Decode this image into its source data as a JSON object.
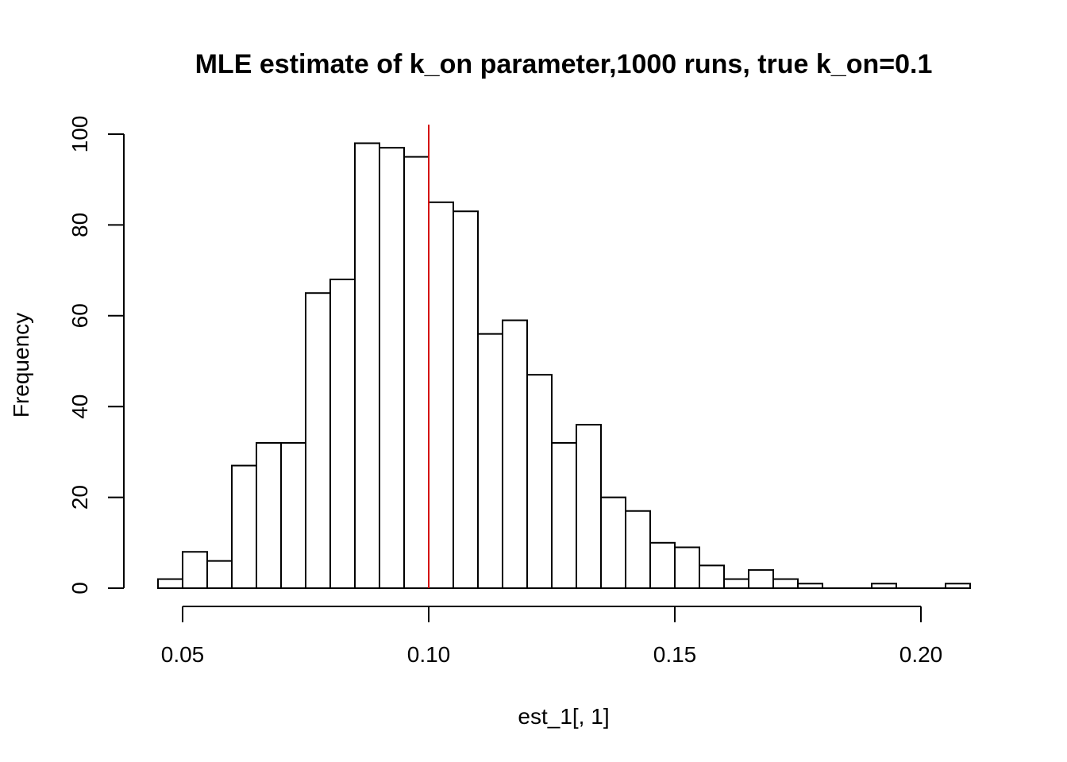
{
  "chart_data": {
    "type": "bar",
    "title": "MLE estimate of k_on parameter,1000 runs, true k_on=0.1",
    "xlabel": "est_1[, 1]",
    "ylabel": "Frequency",
    "bin_width": 0.005,
    "bins": [
      {
        "x0": 0.045,
        "x1": 0.05,
        "count": 2
      },
      {
        "x0": 0.05,
        "x1": 0.055,
        "count": 8
      },
      {
        "x0": 0.055,
        "x1": 0.06,
        "count": 6
      },
      {
        "x0": 0.06,
        "x1": 0.065,
        "count": 27
      },
      {
        "x0": 0.065,
        "x1": 0.07,
        "count": 32
      },
      {
        "x0": 0.07,
        "x1": 0.075,
        "count": 32
      },
      {
        "x0": 0.075,
        "x1": 0.08,
        "count": 65
      },
      {
        "x0": 0.08,
        "x1": 0.085,
        "count": 68
      },
      {
        "x0": 0.085,
        "x1": 0.09,
        "count": 98
      },
      {
        "x0": 0.09,
        "x1": 0.095,
        "count": 97
      },
      {
        "x0": 0.095,
        "x1": 0.1,
        "count": 95
      },
      {
        "x0": 0.1,
        "x1": 0.105,
        "count": 85
      },
      {
        "x0": 0.105,
        "x1": 0.11,
        "count": 83
      },
      {
        "x0": 0.11,
        "x1": 0.115,
        "count": 56
      },
      {
        "x0": 0.115,
        "x1": 0.12,
        "count": 59
      },
      {
        "x0": 0.12,
        "x1": 0.125,
        "count": 47
      },
      {
        "x0": 0.125,
        "x1": 0.13,
        "count": 32
      },
      {
        "x0": 0.13,
        "x1": 0.135,
        "count": 36
      },
      {
        "x0": 0.135,
        "x1": 0.14,
        "count": 20
      },
      {
        "x0": 0.14,
        "x1": 0.145,
        "count": 17
      },
      {
        "x0": 0.145,
        "x1": 0.15,
        "count": 10
      },
      {
        "x0": 0.15,
        "x1": 0.155,
        "count": 9
      },
      {
        "x0": 0.155,
        "x1": 0.16,
        "count": 5
      },
      {
        "x0": 0.16,
        "x1": 0.165,
        "count": 2
      },
      {
        "x0": 0.165,
        "x1": 0.17,
        "count": 4
      },
      {
        "x0": 0.17,
        "x1": 0.175,
        "count": 2
      },
      {
        "x0": 0.175,
        "x1": 0.18,
        "count": 1
      },
      {
        "x0": 0.18,
        "x1": 0.185,
        "count": 0
      },
      {
        "x0": 0.185,
        "x1": 0.19,
        "count": 0
      },
      {
        "x0": 0.19,
        "x1": 0.195,
        "count": 1
      },
      {
        "x0": 0.195,
        "x1": 0.2,
        "count": 0
      },
      {
        "x0": 0.2,
        "x1": 0.205,
        "count": 0
      },
      {
        "x0": 0.205,
        "x1": 0.21,
        "count": 1
      }
    ],
    "x_ticks": [
      0.05,
      0.1,
      0.15,
      0.2
    ],
    "x_tick_labels": [
      "0.05",
      "0.10",
      "0.15",
      "0.20"
    ],
    "y_ticks": [
      0,
      20,
      40,
      60,
      80,
      100
    ],
    "y_tick_labels": [
      "0",
      "20",
      "40",
      "60",
      "80",
      "100"
    ],
    "xlim": [
      0.045,
      0.21
    ],
    "ylim": [
      0,
      100
    ],
    "grid": false,
    "reference_line": {
      "x": 0.1,
      "color": "#d40000"
    },
    "colors": {
      "bar_fill": "#ffffff",
      "bar_stroke": "#000000",
      "axis": "#000000"
    }
  }
}
